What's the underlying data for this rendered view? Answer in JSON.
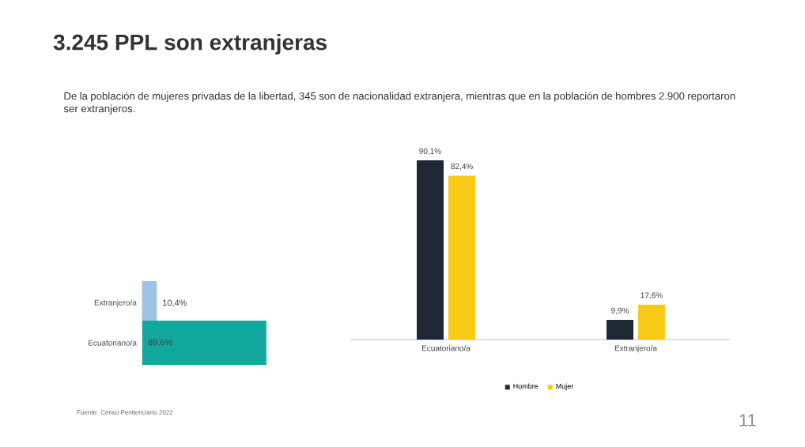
{
  "chart_data": [
    {
      "type": "bar",
      "orientation": "horizontal",
      "title": "3.245 PPL son extranjeras",
      "subtitle": "De la población de mujeres privadas de la libertad, 345 son de nacionalidad extranjera, mientras que en la población de hombres 2.900 reportaron ser extranjeros.",
      "categories": [
        "Extranjero/a",
        "Ecuatoriano/a"
      ],
      "values": [
        10.4,
        89.6
      ],
      "colors": [
        "#9dc3e6",
        "#13a89e"
      ],
      "value_labels": [
        "10,4%",
        "89,6%"
      ],
      "annotations": [
        "Fuente: Censo Penitenciario 2022",
        "11"
      ]
    },
    {
      "type": "bar",
      "categories": [
        "Ecuatoriano/a",
        "Extranjero/a"
      ],
      "legend": "bottom",
      "series": [
        {
          "name": "Hombre",
          "color": "#1e2736",
          "values": [
            90.1,
            9.9
          ],
          "value_labels": [
            "90,1%",
            "9,9%"
          ]
        },
        {
          "name": "Mujer",
          "color": "#f7cb15",
          "values": [
            82.4,
            17.6
          ],
          "value_labels": [
            "82,4%",
            "17,6%"
          ]
        }
      ]
    }
  ]
}
